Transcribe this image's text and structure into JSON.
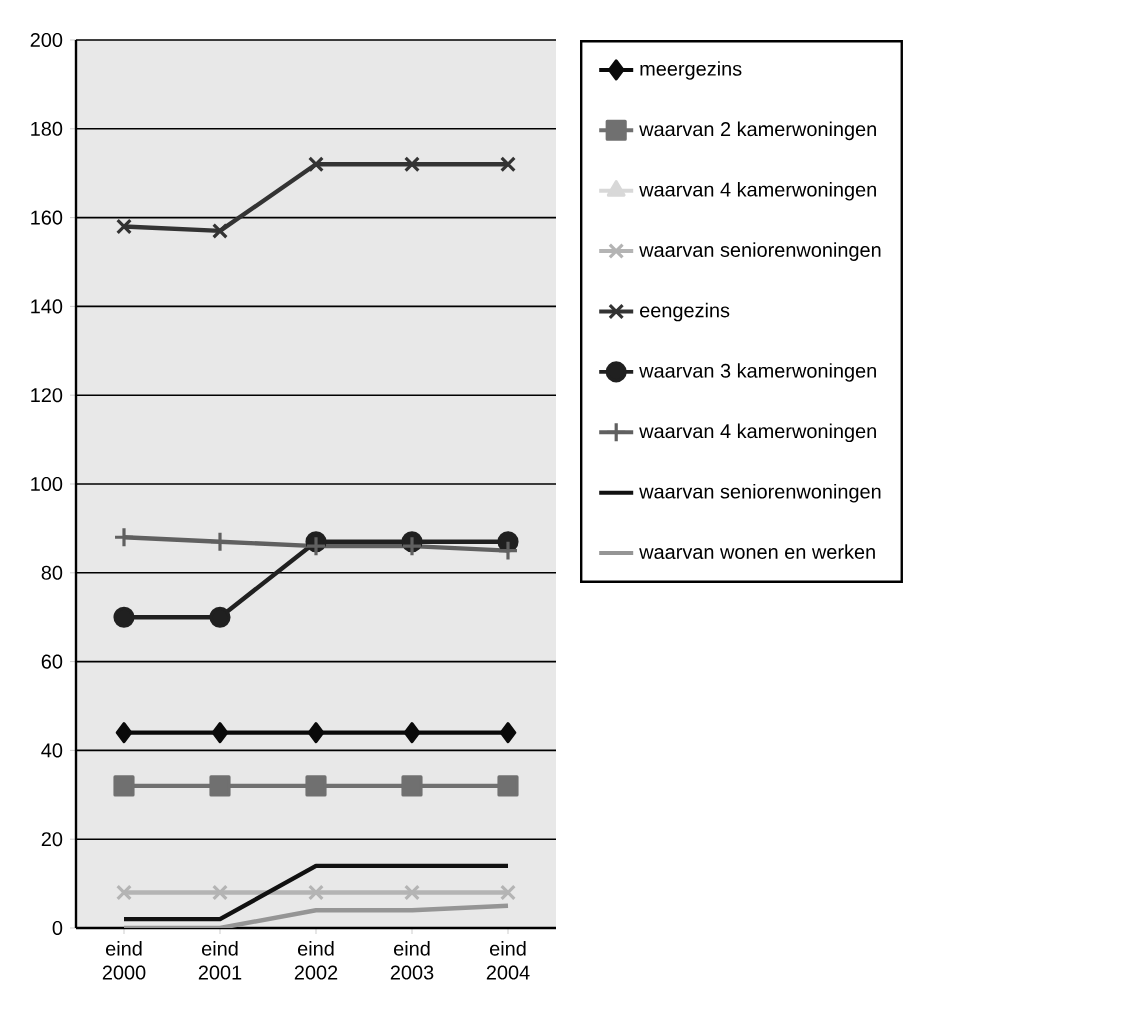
{
  "chart_data": {
    "type": "line",
    "categories": [
      "eind 2000",
      "eind 2001",
      "eind 2002",
      "eind 2003",
      "eind 2004"
    ],
    "ylim": [
      0,
      200
    ],
    "yticks": [
      0,
      20,
      40,
      60,
      80,
      100,
      120,
      140,
      160,
      180,
      200
    ],
    "grid": "y",
    "legend": "right",
    "series": [
      {
        "name": "meergezins",
        "color": "#0a0a0a",
        "marker": "diamond",
        "values": [
          44,
          44,
          44,
          44,
          44
        ]
      },
      {
        "name": "waarvan 2 kamerwoningen",
        "color": "#707070",
        "marker": "square",
        "values": [
          32,
          32,
          32,
          32,
          32
        ]
      },
      {
        "name": "waarvan 4 kamerwoningen",
        "color": "#d8d8d8",
        "marker": "triangle",
        "values": [
          null,
          null,
          null,
          null,
          null
        ]
      },
      {
        "name": "waarvan seniorenwoningen",
        "color": "#b4b4b4",
        "marker": "cross",
        "values": [
          8,
          8,
          8,
          8,
          8
        ]
      },
      {
        "name": "eengezins",
        "color": "#333333",
        "marker": "cross",
        "values": [
          158,
          157,
          172,
          172,
          172
        ]
      },
      {
        "name": "waarvan 3 kamerwoningen",
        "color": "#202020",
        "marker": "circle",
        "values": [
          70,
          70,
          87,
          87,
          87
        ]
      },
      {
        "name": "waarvan 4 kamerwoningen",
        "color": "#606060",
        "marker": "plus",
        "values": [
          88,
          87,
          86,
          86,
          85
        ]
      },
      {
        "name": "waarvan seniorenwoningen",
        "color": "#111111",
        "marker": "none",
        "values": [
          2,
          2,
          14,
          14,
          14
        ]
      },
      {
        "name": "waarvan wonen en werken",
        "color": "#959595",
        "marker": "none",
        "values": [
          0,
          0,
          4,
          4,
          5
        ]
      }
    ]
  }
}
